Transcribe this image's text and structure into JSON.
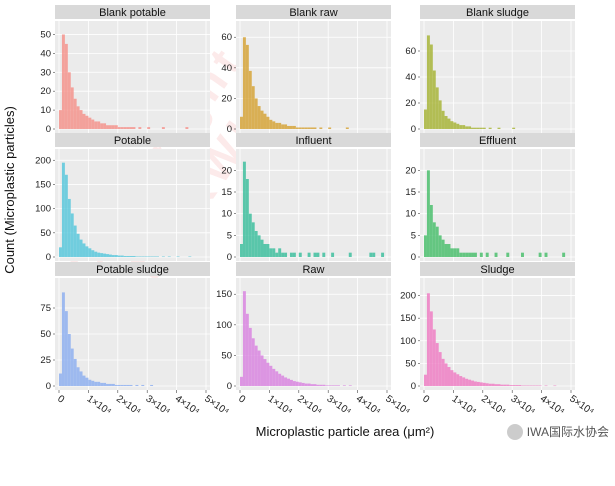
{
  "chart_data": {
    "type": "histogram-facets",
    "ylabel": "Count (Microplastic particles)",
    "xlabel": "Microplastic particle area (μm²)",
    "xlim": [
      0,
      50000
    ],
    "x_ticks": [
      "0",
      "1×10⁴",
      "2×10⁴",
      "3×10⁴",
      "4×10⁴",
      "5×10⁴"
    ],
    "x_tick_values": [
      0,
      10000,
      20000,
      30000,
      40000,
      50000
    ],
    "bin_width": 1000,
    "panels": [
      {
        "title": "Blank potable",
        "color": "#f4948d",
        "ylim": [
          0,
          55
        ],
        "yticks": [
          0,
          10,
          20,
          30,
          40,
          50
        ],
        "counts": [
          10,
          50,
          45,
          30,
          22,
          16,
          12,
          10,
          8,
          7,
          6,
          5,
          4,
          4,
          3,
          3,
          2,
          2,
          2,
          2,
          1,
          1,
          1,
          1,
          1,
          1,
          0,
          1,
          0,
          0,
          1,
          0,
          0,
          0,
          0,
          1,
          0,
          0,
          0,
          0,
          0,
          0,
          0,
          1,
          0,
          0,
          0,
          0,
          0,
          0
        ]
      },
      {
        "title": "Blank raw",
        "color": "#d6a53a",
        "ylim": [
          0,
          68
        ],
        "yticks": [
          0,
          20,
          40,
          60
        ],
        "counts": [
          8,
          60,
          55,
          38,
          28,
          20,
          15,
          12,
          10,
          8,
          6,
          5,
          4,
          4,
          3,
          3,
          2,
          2,
          2,
          1,
          1,
          1,
          1,
          1,
          1,
          1,
          0,
          1,
          0,
          0,
          1,
          0,
          0,
          0,
          0,
          0,
          1,
          0,
          0,
          0,
          0,
          0,
          0,
          0,
          0,
          0,
          0,
          0,
          0,
          0
        ]
      },
      {
        "title": "Blank sludge",
        "color": "#a8b53a",
        "ylim": [
          0,
          80
        ],
        "yticks": [
          0,
          20,
          40,
          60
        ],
        "counts": [
          15,
          72,
          65,
          45,
          32,
          22,
          14,
          10,
          8,
          6,
          5,
          4,
          3,
          3,
          2,
          2,
          1,
          1,
          1,
          1,
          1,
          0,
          1,
          0,
          0,
          1,
          0,
          0,
          0,
          0,
          1,
          0,
          0,
          0,
          0,
          0,
          0,
          0,
          0,
          0,
          0,
          0,
          0,
          0,
          0,
          0,
          0,
          0,
          0,
          0
        ]
      },
      {
        "title": "Potable",
        "color": "#5bc8dc",
        "ylim": [
          0,
          215
        ],
        "yticks": [
          0,
          50,
          100,
          150,
          200
        ],
        "counts": [
          20,
          195,
          170,
          120,
          90,
          65,
          48,
          36,
          28,
          22,
          18,
          14,
          11,
          9,
          8,
          7,
          6,
          5,
          4,
          4,
          3,
          3,
          2,
          2,
          2,
          2,
          1,
          1,
          1,
          1,
          1,
          1,
          1,
          1,
          0,
          1,
          0,
          1,
          0,
          0,
          1,
          0,
          0,
          0,
          1,
          0,
          0,
          0,
          0,
          0
        ]
      },
      {
        "title": "Influent",
        "color": "#3fbf9f",
        "ylim": [
          0,
          24
        ],
        "yticks": [
          0,
          5,
          10,
          15,
          20
        ],
        "counts": [
          3,
          22,
          18,
          10,
          8,
          6,
          5,
          4,
          3,
          3,
          2,
          2,
          1,
          2,
          1,
          1,
          0,
          1,
          1,
          0,
          1,
          0,
          0,
          1,
          0,
          1,
          1,
          0,
          1,
          0,
          0,
          1,
          0,
          0,
          0,
          0,
          0,
          1,
          0,
          0,
          0,
          0,
          0,
          0,
          1,
          1,
          0,
          0,
          1,
          0
        ]
      },
      {
        "title": "Effluent",
        "color": "#4cbf6e",
        "ylim": [
          0,
          24
        ],
        "yticks": [
          0,
          5,
          10,
          15,
          20
        ],
        "counts": [
          5,
          20,
          12,
          8,
          7,
          5,
          4,
          3,
          3,
          2,
          2,
          2,
          1,
          1,
          1,
          1,
          1,
          1,
          0,
          1,
          0,
          1,
          0,
          0,
          1,
          0,
          0,
          0,
          1,
          0,
          0,
          0,
          0,
          1,
          0,
          0,
          0,
          0,
          0,
          1,
          0,
          1,
          0,
          0,
          0,
          0,
          0,
          1,
          0,
          0
        ]
      },
      {
        "title": "Potable sludge",
        "color": "#8fb0f0",
        "ylim": [
          0,
          100
        ],
        "yticks": [
          0,
          25,
          50,
          75
        ],
        "counts": [
          12,
          90,
          72,
          50,
          36,
          26,
          18,
          14,
          10,
          8,
          6,
          5,
          4,
          4,
          3,
          3,
          2,
          2,
          2,
          1,
          1,
          1,
          1,
          1,
          1,
          0,
          1,
          0,
          1,
          0,
          0,
          1,
          0,
          0,
          0,
          0,
          0,
          0,
          0,
          0,
          0,
          0,
          0,
          0,
          0,
          0,
          0,
          0,
          0,
          0
        ]
      },
      {
        "title": "Raw",
        "color": "#d986e0",
        "ylim": [
          0,
          170
        ],
        "yticks": [
          0,
          50,
          100,
          150
        ],
        "counts": [
          15,
          155,
          118,
          95,
          78,
          66,
          58,
          50,
          44,
          38,
          33,
          28,
          24,
          20,
          17,
          14,
          12,
          10,
          8,
          7,
          6,
          5,
          4,
          4,
          3,
          3,
          2,
          2,
          2,
          1,
          1,
          1,
          1,
          1,
          0,
          1,
          0,
          1,
          0,
          0,
          0,
          0,
          0,
          0,
          0,
          0,
          0,
          0,
          0,
          0
        ]
      },
      {
        "title": "Sludge",
        "color": "#ef7fc4",
        "ylim": [
          0,
          230
        ],
        "yticks": [
          0,
          50,
          100,
          150,
          200
        ],
        "counts": [
          25,
          205,
          165,
          125,
          95,
          75,
          60,
          50,
          42,
          35,
          30,
          26,
          22,
          19,
          16,
          14,
          12,
          10,
          9,
          8,
          7,
          6,
          5,
          5,
          4,
          4,
          3,
          3,
          3,
          2,
          2,
          2,
          2,
          1,
          1,
          1,
          1,
          1,
          1,
          1,
          0,
          1,
          0,
          0,
          1,
          0,
          0,
          0,
          0,
          0
        ]
      }
    ]
  },
  "watermark": {
    "brand": "IWA国际水协会",
    "stamp": "Copyright of UKWIR"
  }
}
